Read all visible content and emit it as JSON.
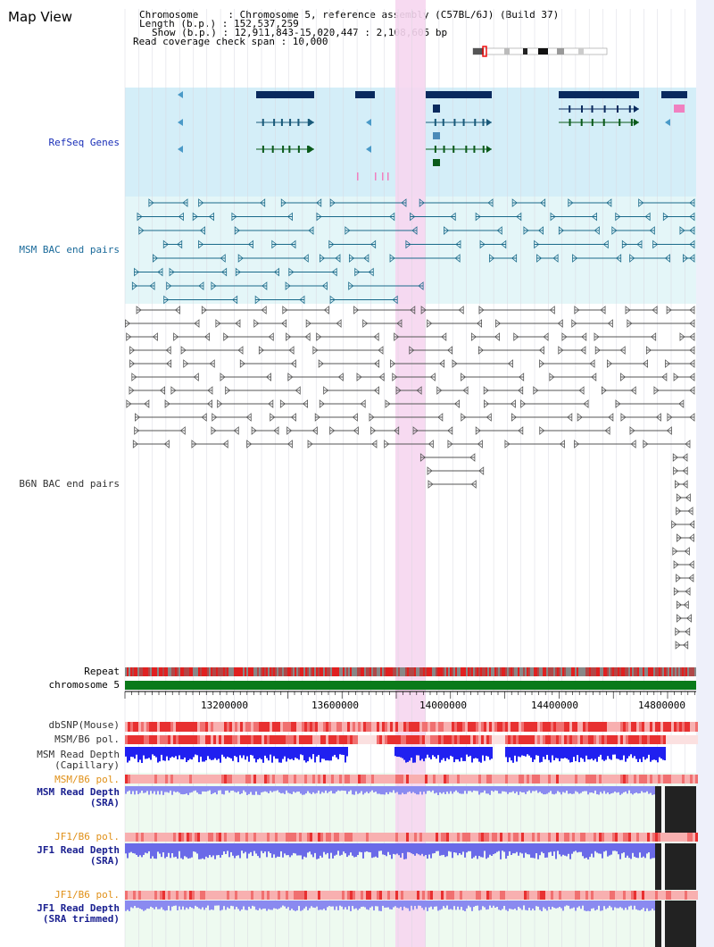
{
  "header": {
    "title": "Map View",
    "info_lines": [
      "Chromosome     : Chromosome 5, reference assembly (C57BL/6J) (Build 37)",
      "Length (b.p.) : 152,537,259",
      "Show (b.p.) : 12,911,843-15,020,447 : 2,108,605 bp",
      "Read coverage check span : 10,000"
    ]
  },
  "tracks": {
    "refseq": "RefSeq Genes",
    "msm_bac": "MSM BAC end pairs",
    "b6n_bac": "B6N BAC end pairs",
    "repeat": "Repeat",
    "chromosome": "chromosome 5",
    "dbsnp": "dbSNP(Mouse)",
    "msm_b6_pol_1": "MSM/B6 pol.",
    "msm_read_depth_cap_1": "MSM Read Depth",
    "msm_read_depth_cap_2": "(Capillary)",
    "msm_b6_pol_2": "MSM/B6 pol.",
    "msm_read_depth_sra_1": "MSM Read Depth",
    "msm_read_depth_sra_2": "(SRA)",
    "jf1_b6_pol_1": "JF1/B6 pol.",
    "jf1_read_depth_sra_1": "JF1 Read Depth",
    "jf1_read_depth_sra_2": "(SRA)",
    "jf1_b6_pol_2": "JF1/B6 pol.",
    "jf1_read_depth_trim_1": "JF1 Read Depth",
    "jf1_read_depth_trim_2": "(SRA trimmed)"
  },
  "ruler": {
    "ticks": [
      "13200000",
      "13600000",
      "14000000",
      "14400000",
      "14800000"
    ]
  },
  "colors": {
    "refseq_bg": "#d4eef8",
    "bac_bg": "#e4f6f8",
    "highlight": "#f6d6f0",
    "gene_dark": "#0a2a5e",
    "msm_bac": "#1a6a8a",
    "b6n_bac": "#555555",
    "chromosome_bar": "#0a7a1a",
    "snp": "#e03030",
    "depth": "#3030f0"
  }
}
